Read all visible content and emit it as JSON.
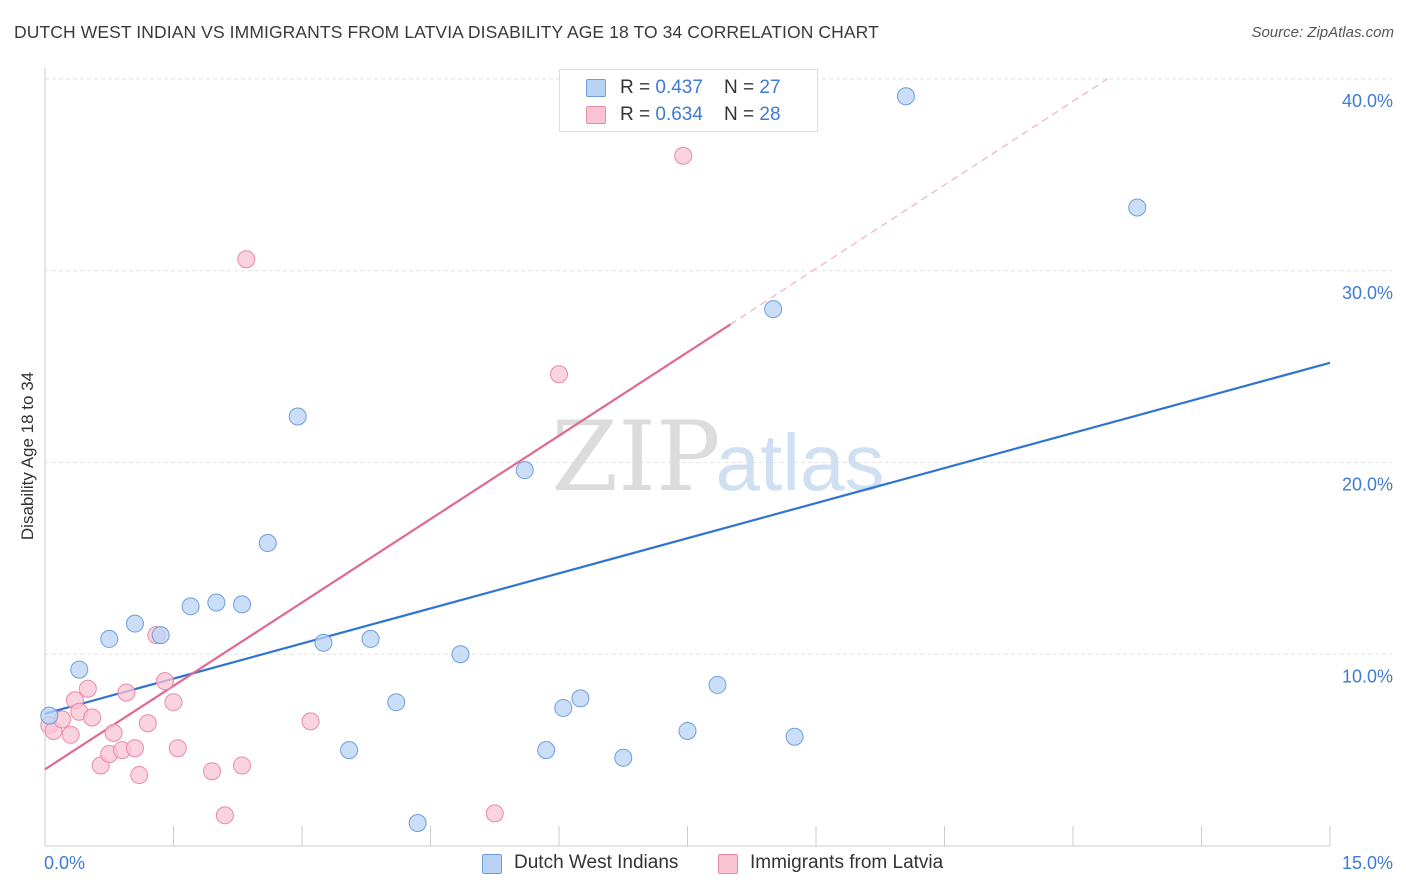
{
  "title": "DUTCH WEST INDIAN VS IMMIGRANTS FROM LATVIA DISABILITY AGE 18 TO 34 CORRELATION CHART",
  "source": "Source: ZipAtlas.com",
  "watermark": {
    "zip": "ZIP",
    "atlas": "atlas"
  },
  "legend": {
    "rows": [
      {
        "r_label": "R = ",
        "r_value": "0.437",
        "n_label": "N = ",
        "n_value": "27"
      },
      {
        "r_label": "R = ",
        "r_value": "0.634",
        "n_label": "N = ",
        "n_value": "28"
      }
    ]
  },
  "colors": {
    "blue_fill": "#b9d3f5",
    "blue_stroke": "#6d9fdc",
    "blue_line": "#2f74d0",
    "pink_fill": "#f8c4d4",
    "pink_stroke": "#e98aa8",
    "pink_line": "#e06891",
    "grid": "#e3e3e3",
    "tick_label": "#3d7bd4"
  },
  "chart_data": {
    "type": "scatter",
    "xlabel": "",
    "ylabel": "Disability Age 18 to 34",
    "xlim": [
      0,
      15
    ],
    "ylim": [
      0,
      40
    ],
    "x_ticks": [
      "0.0%",
      "15.0%"
    ],
    "y_ticks": [
      {
        "value": 10,
        "label": "10.0%"
      },
      {
        "value": 20,
        "label": "20.0%"
      },
      {
        "value": 30,
        "label": "30.0%"
      },
      {
        "value": 40,
        "label": "40.0%"
      }
    ],
    "legend_position": "bottom",
    "series": [
      {
        "name": "Dutch West Indians",
        "color": "blue",
        "points": [
          [
            0.05,
            6.8
          ],
          [
            0.4,
            9.2
          ],
          [
            0.75,
            10.8
          ],
          [
            1.05,
            11.6
          ],
          [
            1.35,
            11.0
          ],
          [
            1.7,
            12.5
          ],
          [
            2.0,
            12.7
          ],
          [
            2.3,
            12.6
          ],
          [
            2.6,
            15.8
          ],
          [
            2.95,
            22.4
          ],
          [
            3.25,
            10.6
          ],
          [
            3.55,
            5.0
          ],
          [
            3.8,
            10.8
          ],
          [
            4.1,
            7.5
          ],
          [
            4.35,
            1.2
          ],
          [
            4.85,
            10.0
          ],
          [
            5.6,
            19.6
          ],
          [
            5.85,
            5.0
          ],
          [
            6.05,
            7.2
          ],
          [
            6.25,
            7.7
          ],
          [
            6.75,
            4.6
          ],
          [
            7.5,
            6.0
          ],
          [
            7.85,
            8.4
          ],
          [
            8.5,
            28.0
          ],
          [
            8.75,
            5.7
          ],
          [
            10.05,
            39.1
          ],
          [
            12.75,
            33.3
          ]
        ],
        "trend": {
          "x": [
            0.0,
            15.0
          ],
          "y": [
            6.9,
            25.2
          ]
        }
      },
      {
        "name": "Immigrants from Latvia",
        "color": "pink",
        "points": [
          [
            0.05,
            6.3
          ],
          [
            0.1,
            6.0
          ],
          [
            0.2,
            6.6
          ],
          [
            0.3,
            5.8
          ],
          [
            0.35,
            7.6
          ],
          [
            0.4,
            7.0
          ],
          [
            0.5,
            8.2
          ],
          [
            0.55,
            6.7
          ],
          [
            0.65,
            4.2
          ],
          [
            0.75,
            4.8
          ],
          [
            0.8,
            5.9
          ],
          [
            0.9,
            5.0
          ],
          [
            0.95,
            8.0
          ],
          [
            1.05,
            5.1
          ],
          [
            1.1,
            3.7
          ],
          [
            1.2,
            6.4
          ],
          [
            1.3,
            11.0
          ],
          [
            1.4,
            8.6
          ],
          [
            1.5,
            7.5
          ],
          [
            1.55,
            5.1
          ],
          [
            1.95,
            3.9
          ],
          [
            2.1,
            1.6
          ],
          [
            2.3,
            4.2
          ],
          [
            2.35,
            30.6
          ],
          [
            3.1,
            6.5
          ],
          [
            5.25,
            1.7
          ],
          [
            6.0,
            24.6
          ],
          [
            7.45,
            36.0
          ]
        ],
        "trend": {
          "x": [
            0.0,
            8.0
          ],
          "y": [
            4.0,
            27.2
          ]
        },
        "trend_extension": {
          "x": [
            8.0,
            12.4
          ],
          "y": [
            27.2,
            40.0
          ]
        }
      }
    ]
  }
}
